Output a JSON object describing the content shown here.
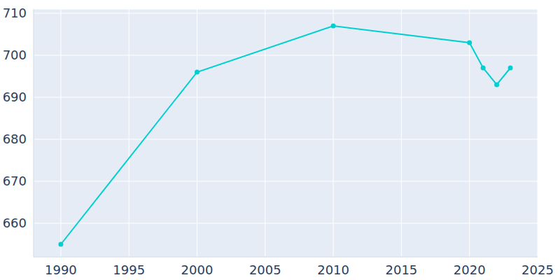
{
  "chart_data": {
    "type": "line",
    "x": [
      1990,
      2000,
      2010,
      2020,
      2021,
      2022,
      2023
    ],
    "values": [
      655,
      696,
      707,
      703,
      697,
      693,
      697
    ],
    "color": "#00cfd1",
    "xlim": [
      1988,
      2025
    ],
    "ylim": [
      652,
      711
    ],
    "xticks": [
      1990,
      1995,
      2000,
      2005,
      2010,
      2015,
      2020,
      2025
    ],
    "yticks": [
      660,
      670,
      680,
      690,
      700,
      710
    ],
    "grid": true,
    "marker": "circle",
    "line_style": "solid"
  }
}
